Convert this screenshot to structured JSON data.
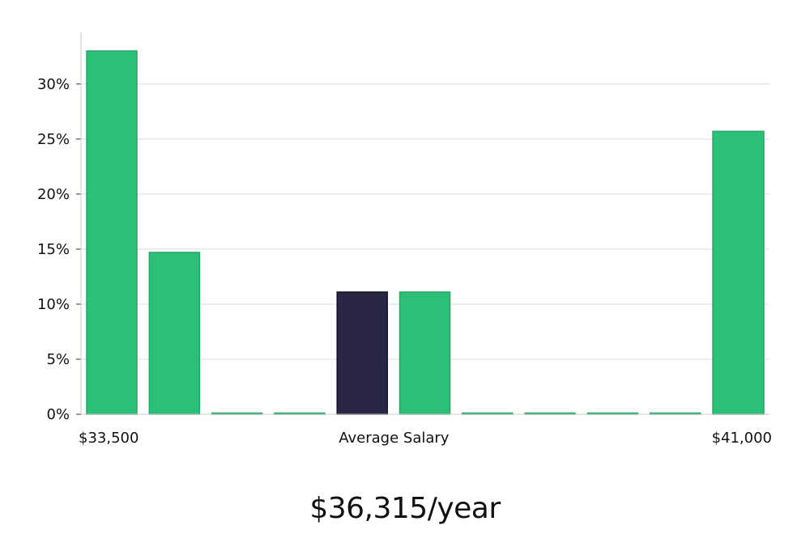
{
  "chart_data": {
    "type": "bar",
    "bins": 11,
    "values": [
      33.0,
      14.7,
      0.1,
      0.1,
      11.1,
      11.1,
      0.1,
      0.1,
      0.1,
      0.1,
      25.7
    ],
    "highlight_index": 4,
    "x_tick_labels": [
      {
        "bin": 0,
        "text": "$33,500"
      },
      {
        "bin": 4.5,
        "text": "Average Salary"
      },
      {
        "bin": 10,
        "text": "$41,000"
      }
    ],
    "y_ticks": [
      0,
      5,
      10,
      15,
      20,
      25,
      30
    ],
    "y_tick_format": "%",
    "ylim": [
      0,
      33.0
    ],
    "grid": true,
    "colors": {
      "bar": "#2bbf78",
      "bar_edge": "#23a866",
      "highlight": "#292745",
      "highlight_edge": "#15142a",
      "grid": "#dcdcdc",
      "axis": "#cccccc"
    }
  },
  "caption": "$36,315/year"
}
